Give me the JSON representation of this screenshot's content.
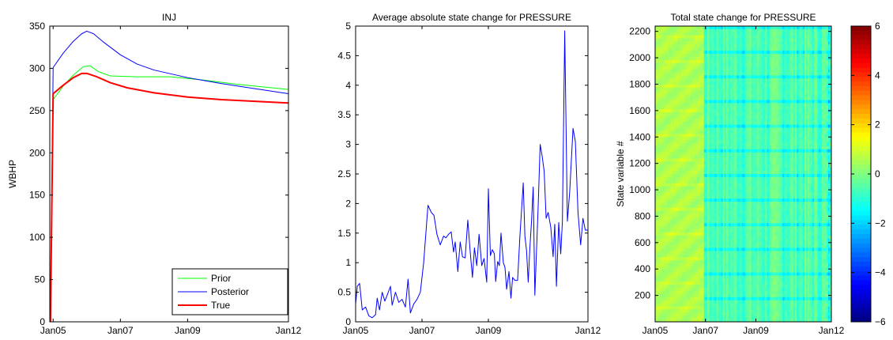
{
  "chart_data": [
    {
      "type": "line",
      "title": "INJ",
      "xlabel": "",
      "ylabel": "WBHP",
      "x_ticks": [
        "Jan05",
        "Jan07",
        "Jan09",
        "Jan12"
      ],
      "x_tick_years": [
        2005,
        2007,
        2009,
        2012
      ],
      "xlim": [
        2004.9,
        2012.0
      ],
      "ylim": [
        0,
        350
      ],
      "y_ticks": [
        "0",
        "50",
        "100",
        "150",
        "200",
        "250",
        "300",
        "350"
      ],
      "legend_position": "bottom-right",
      "series": [
        {
          "name": "Prior",
          "color": "#00ff00",
          "points": [
            [
              2004.92,
              0
            ],
            [
              2005.0,
              263
            ],
            [
              2005.3,
              279
            ],
            [
              2005.6,
              292
            ],
            [
              2005.9,
              302
            ],
            [
              2006.1,
              303
            ],
            [
              2006.35,
              296
            ],
            [
              2006.7,
              291
            ],
            [
              2007.5,
              290
            ],
            [
              2008.5,
              290
            ],
            [
              2009.5,
              286
            ],
            [
              2010.5,
              281
            ],
            [
              2011.5,
              277
            ],
            [
              2012.0,
              275
            ]
          ]
        },
        {
          "name": "Posterior",
          "color": "#0000ff",
          "points": [
            [
              2004.92,
              0
            ],
            [
              2005.0,
              301
            ],
            [
              2005.3,
              318
            ],
            [
              2005.6,
              332
            ],
            [
              2005.85,
              341
            ],
            [
              2006.0,
              344
            ],
            [
              2006.2,
              341
            ],
            [
              2006.5,
              331
            ],
            [
              2007.0,
              316
            ],
            [
              2007.5,
              305
            ],
            [
              2008.0,
              298
            ],
            [
              2009.0,
              289
            ],
            [
              2010.0,
              282
            ],
            [
              2011.0,
              276
            ],
            [
              2012.0,
              270
            ]
          ]
        },
        {
          "name": "True",
          "color": "#ff0000",
          "points": [
            [
              2004.92,
              0
            ],
            [
              2005.0,
              270
            ],
            [
              2005.3,
              280
            ],
            [
              2005.6,
              289
            ],
            [
              2005.85,
              294
            ],
            [
              2006.0,
              294
            ],
            [
              2006.3,
              290
            ],
            [
              2006.7,
              283
            ],
            [
              2007.2,
              277
            ],
            [
              2008.0,
              271
            ],
            [
              2009.0,
              266
            ],
            [
              2010.0,
              263
            ],
            [
              2011.0,
              261
            ],
            [
              2012.0,
              259
            ]
          ]
        }
      ]
    },
    {
      "type": "line",
      "title": "Average absolute state change for PRESSURE",
      "xlabel": "",
      "ylabel": "",
      "x_ticks": [
        "Jan05",
        "Jan07",
        "Jan09",
        "Jan12"
      ],
      "x_tick_years": [
        2005,
        2007,
        2009,
        2012
      ],
      "xlim": [
        2005.0,
        2012.0
      ],
      "ylim": [
        0,
        5
      ],
      "y_ticks": [
        "0",
        "0.5",
        "1",
        "1.5",
        "2",
        "2.5",
        "3",
        "3.5",
        "4",
        "4.5",
        "5"
      ],
      "series": [
        {
          "color": "#0000ff",
          "points": [
            [
              2005.0,
              0.3
            ],
            [
              2005.05,
              0.6
            ],
            [
              2005.12,
              0.65
            ],
            [
              2005.2,
              0.2
            ],
            [
              2005.3,
              0.25
            ],
            [
              2005.4,
              0.1
            ],
            [
              2005.5,
              0.07
            ],
            [
              2005.6,
              0.12
            ],
            [
              2005.65,
              0.4
            ],
            [
              2005.72,
              0.2
            ],
            [
              2005.8,
              0.5
            ],
            [
              2005.88,
              0.35
            ],
            [
              2005.95,
              0.45
            ],
            [
              2006.05,
              0.6
            ],
            [
              2006.1,
              0.28
            ],
            [
              2006.2,
              0.5
            ],
            [
              2006.3,
              0.33
            ],
            [
              2006.4,
              0.38
            ],
            [
              2006.5,
              0.25
            ],
            [
              2006.58,
              0.72
            ],
            [
              2006.65,
              0.15
            ],
            [
              2006.75,
              0.3
            ],
            [
              2006.85,
              0.38
            ],
            [
              2006.95,
              0.5
            ],
            [
              2007.05,
              1.0
            ],
            [
              2007.18,
              1.97
            ],
            [
              2007.28,
              1.85
            ],
            [
              2007.36,
              1.8
            ],
            [
              2007.45,
              1.48
            ],
            [
              2007.55,
              1.3
            ],
            [
              2007.65,
              1.45
            ],
            [
              2007.72,
              1.42
            ],
            [
              2007.8,
              1.48
            ],
            [
              2007.88,
              1.52
            ],
            [
              2007.95,
              1.18
            ],
            [
              2008.0,
              1.35
            ],
            [
              2008.08,
              0.85
            ],
            [
              2008.15,
              1.35
            ],
            [
              2008.22,
              1.1
            ],
            [
              2008.3,
              1.08
            ],
            [
              2008.38,
              1.72
            ],
            [
              2008.45,
              1.2
            ],
            [
              2008.52,
              0.75
            ],
            [
              2008.58,
              1.25
            ],
            [
              2008.65,
              0.95
            ],
            [
              2008.72,
              1.48
            ],
            [
              2008.8,
              0.95
            ],
            [
              2008.87,
              1.07
            ],
            [
              2008.95,
              0.67
            ],
            [
              2009.0,
              2.25
            ],
            [
              2009.06,
              1.12
            ],
            [
              2009.12,
              1.22
            ],
            [
              2009.18,
              1.15
            ],
            [
              2009.22,
              0.68
            ],
            [
              2009.28,
              1.02
            ],
            [
              2009.33,
              0.95
            ],
            [
              2009.38,
              1.5
            ],
            [
              2009.45,
              1.0
            ],
            [
              2009.5,
              0.92
            ],
            [
              2009.55,
              0.55
            ],
            [
              2009.62,
              0.85
            ],
            [
              2009.68,
              0.4
            ],
            [
              2009.73,
              0.75
            ],
            [
              2009.8,
              0.7
            ],
            [
              2009.88,
              0.7
            ],
            [
              2009.95,
              1.45
            ],
            [
              2010.0,
              1.9
            ],
            [
              2010.05,
              2.35
            ],
            [
              2010.1,
              1.45
            ],
            [
              2010.15,
              1.2
            ],
            [
              2010.2,
              0.67
            ],
            [
              2010.25,
              1.25
            ],
            [
              2010.3,
              1.7
            ],
            [
              2010.35,
              2.28
            ],
            [
              2010.4,
              0.45
            ],
            [
              2010.5,
              1.95
            ],
            [
              2010.56,
              3.0
            ],
            [
              2010.62,
              2.8
            ],
            [
              2010.68,
              2.55
            ],
            [
              2010.74,
              1.75
            ],
            [
              2010.8,
              1.85
            ],
            [
              2010.88,
              1.6
            ],
            [
              2010.95,
              1.1
            ],
            [
              2011.0,
              1.65
            ],
            [
              2011.05,
              0.6
            ],
            [
              2011.12,
              1.68
            ],
            [
              2011.18,
              1.15
            ],
            [
              2011.23,
              1.7
            ],
            [
              2011.3,
              4.92
            ],
            [
              2011.38,
              1.7
            ],
            [
              2011.45,
              2.2
            ],
            [
              2011.55,
              3.27
            ],
            [
              2011.62,
              3.05
            ],
            [
              2011.7,
              1.85
            ],
            [
              2011.78,
              1.3
            ],
            [
              2011.85,
              1.75
            ],
            [
              2011.92,
              1.55
            ],
            [
              2012.0,
              1.55
            ]
          ]
        }
      ]
    },
    {
      "type": "heatmap",
      "title": "Total state change for PRESSURE",
      "xlabel": "",
      "ylabel": "State variable #",
      "x_ticks": [
        "Jan05",
        "Jan07",
        "Jan09",
        "Jan12"
      ],
      "x_tick_years": [
        2005,
        2007,
        2009,
        2012
      ],
      "xlim": [
        2005.0,
        2012.0
      ],
      "ylim": [
        0,
        2240
      ],
      "y_ticks": [
        "200",
        "400",
        "600",
        "800",
        "1000",
        "1200",
        "1400",
        "1600",
        "1800",
        "2000",
        "2200"
      ],
      "y_tick_values": [
        200,
        400,
        600,
        800,
        1000,
        1200,
        1400,
        1600,
        1800,
        2000,
        2200
      ],
      "colorbar": {
        "range": [
          -6,
          6
        ],
        "ticks": [
          "6",
          "4",
          "2",
          "0",
          "−2",
          "−4",
          "−6"
        ],
        "tick_values": [
          6,
          4,
          2,
          0,
          -2,
          -4,
          -6
        ],
        "colormap": "jet"
      },
      "approx_value_ranges": {
        "jan05_to_jan07": [
          0,
          1.5
        ],
        "after_jan07": [
          -2,
          0.5
        ]
      }
    }
  ]
}
